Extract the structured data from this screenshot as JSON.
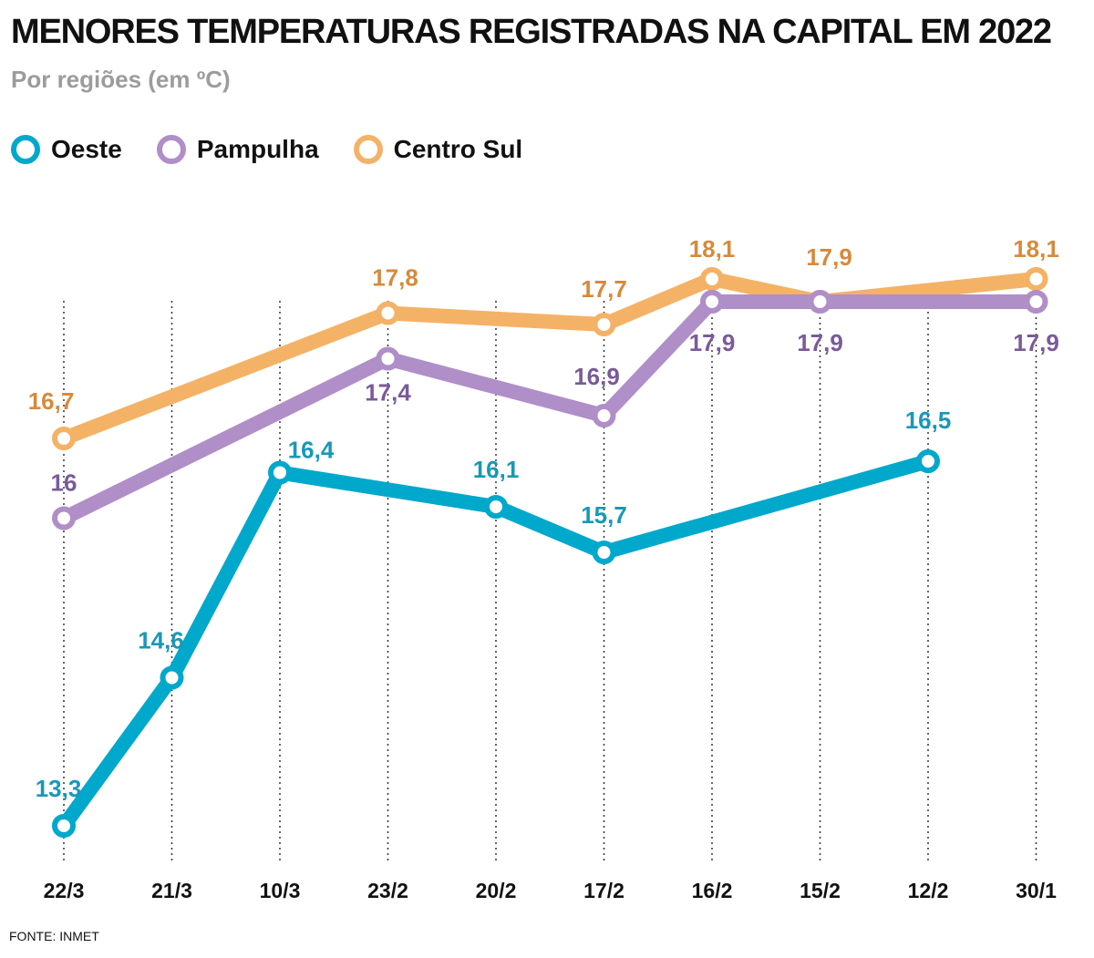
{
  "title": "MENORES TEMPERATURAS REGISTRADAS NA CAPITAL EM 2022",
  "subtitle": "Por regiões (em ºC)",
  "source": "FONTE: INMET",
  "legend": [
    {
      "label": "Oeste",
      "color": "#00a8cc"
    },
    {
      "label": "Pampulha",
      "color": "#b08ec8"
    },
    {
      "label": "Centro Sul",
      "color": "#f4b266"
    }
  ],
  "chart_data": {
    "type": "line",
    "title": "MENORES TEMPERATURAS REGISTRADAS NA CAPITAL EM 2022",
    "subtitle": "Por regiões (em ºC)",
    "xlabel": "",
    "ylabel": "",
    "categories": [
      "22/3",
      "21/3",
      "10/3",
      "23/2",
      "20/2",
      "17/2",
      "16/2",
      "15/2",
      "12/2",
      "30/1"
    ],
    "ylim": [
      13,
      18.5
    ],
    "grid": "dotted vertical lines",
    "legend_position": "top-left",
    "series": [
      {
        "name": "Oeste",
        "color": "#00a8cc",
        "label_color": "#1898b8",
        "values": [
          13.3,
          14.6,
          16.4,
          null,
          16.1,
          15.7,
          null,
          null,
          16.5,
          null
        ],
        "labels": [
          "13,3",
          "14,6",
          "16,4",
          null,
          "16,1",
          "15,7",
          null,
          null,
          "16,5",
          null
        ]
      },
      {
        "name": "Pampulha",
        "color": "#b08ec8",
        "label_color": "#7a5a99",
        "values": [
          16.0,
          null,
          null,
          17.4,
          null,
          16.9,
          17.9,
          17.9,
          null,
          17.9
        ],
        "labels": [
          "16",
          null,
          null,
          "17,4",
          null,
          "16,9",
          "17,9",
          "17,9",
          null,
          "17,9"
        ]
      },
      {
        "name": "Centro Sul",
        "color": "#f4b266",
        "label_color": "#d68a3c",
        "values": [
          16.7,
          null,
          null,
          17.8,
          null,
          17.7,
          18.1,
          17.9,
          null,
          18.1
        ],
        "labels": [
          "16,7",
          null,
          null,
          "17,8",
          null,
          "17,7",
          "18,1",
          "17,9",
          null,
          "18,1"
        ]
      }
    ]
  }
}
